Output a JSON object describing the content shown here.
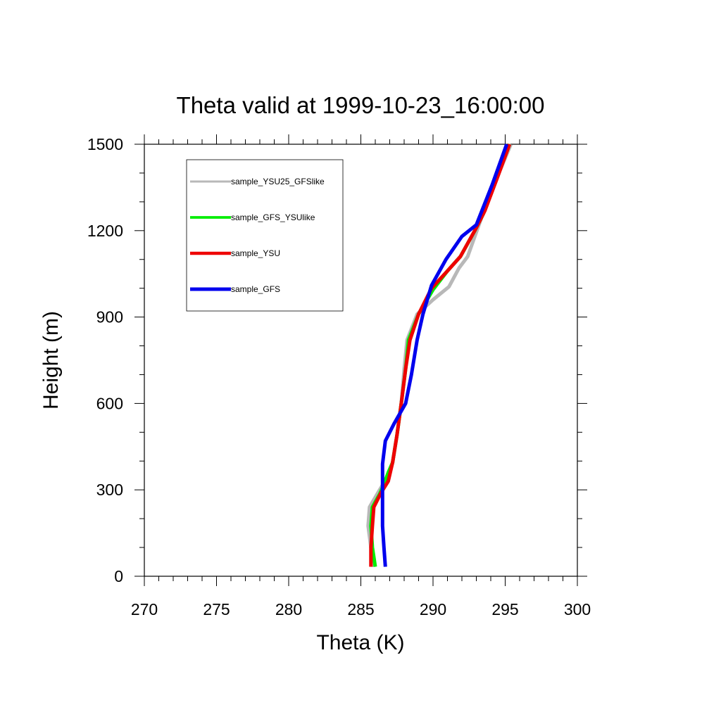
{
  "chart_data": {
    "type": "line",
    "title": "Theta valid at 1999-10-23_16:00:00",
    "xlabel": "Theta (K)",
    "ylabel": "Height (m)",
    "xlim": [
      270,
      300
    ],
    "ylim": [
      0,
      1500
    ],
    "xticks": [
      "270",
      "275",
      "280",
      "285",
      "290",
      "295",
      "300"
    ],
    "yticks": [
      "0",
      "300",
      "600",
      "900",
      "1200",
      "1500"
    ],
    "x_minor_step": 1,
    "y_minor_step": 100,
    "grid": false,
    "legend_position": "top-left",
    "series": [
      {
        "name": "sample_YSU25_GFSlike",
        "color": "#b8b8b8",
        "points": [
          [
            285.9,
            33
          ],
          [
            285.7,
            100
          ],
          [
            285.5,
            175
          ],
          [
            285.6,
            240
          ],
          [
            286.3,
            300
          ],
          [
            286.9,
            350
          ],
          [
            287.2,
            395
          ],
          [
            287.5,
            490
          ],
          [
            287.8,
            600
          ],
          [
            288.0,
            720
          ],
          [
            288.2,
            820
          ],
          [
            288.9,
            910
          ],
          [
            290.0,
            960
          ],
          [
            291.1,
            1005
          ],
          [
            291.8,
            1070
          ],
          [
            292.4,
            1110
          ],
          [
            292.9,
            1180
          ],
          [
            293.4,
            1250
          ],
          [
            294.4,
            1380
          ],
          [
            295.4,
            1500
          ]
        ]
      },
      {
        "name": "sample_GFS_YSUlike",
        "color": "#00ee00",
        "points": [
          [
            286.0,
            33
          ],
          [
            285.8,
            100
          ],
          [
            285.7,
            175
          ],
          [
            285.8,
            240
          ],
          [
            286.3,
            285
          ],
          [
            286.6,
            320
          ],
          [
            286.9,
            360
          ],
          [
            287.2,
            395
          ],
          [
            287.5,
            490
          ],
          [
            287.8,
            600
          ],
          [
            288.1,
            720
          ],
          [
            288.3,
            820
          ],
          [
            289.0,
            910
          ],
          [
            290.0,
            995
          ],
          [
            291.0,
            1060
          ],
          [
            291.9,
            1110
          ],
          [
            292.9,
            1200
          ],
          [
            293.5,
            1260
          ],
          [
            294.4,
            1380
          ],
          [
            295.3,
            1500
          ]
        ]
      },
      {
        "name": "sample_YSU",
        "color": "#ee0000",
        "points": [
          [
            285.7,
            33
          ],
          [
            285.7,
            100
          ],
          [
            285.8,
            175
          ],
          [
            285.9,
            240
          ],
          [
            286.4,
            290
          ],
          [
            286.9,
            330
          ],
          [
            287.2,
            395
          ],
          [
            287.5,
            490
          ],
          [
            287.8,
            600
          ],
          [
            288.1,
            720
          ],
          [
            288.4,
            820
          ],
          [
            289.0,
            910
          ],
          [
            289.9,
            1000
          ],
          [
            291.0,
            1060
          ],
          [
            291.9,
            1110
          ],
          [
            293.0,
            1210
          ],
          [
            293.6,
            1270
          ],
          [
            294.5,
            1390
          ],
          [
            295.3,
            1500
          ]
        ]
      },
      {
        "name": "sample_GFS",
        "color": "#0000ee",
        "points": [
          [
            286.7,
            33
          ],
          [
            286.6,
            100
          ],
          [
            286.5,
            175
          ],
          [
            286.5,
            270
          ],
          [
            286.5,
            390
          ],
          [
            286.7,
            470
          ],
          [
            287.3,
            530
          ],
          [
            288.1,
            600
          ],
          [
            288.5,
            700
          ],
          [
            288.9,
            820
          ],
          [
            289.3,
            910
          ],
          [
            289.9,
            1010
          ],
          [
            290.9,
            1100
          ],
          [
            292.0,
            1180
          ],
          [
            293.0,
            1220
          ],
          [
            294.1,
            1360
          ],
          [
            295.1,
            1500
          ]
        ]
      }
    ]
  }
}
